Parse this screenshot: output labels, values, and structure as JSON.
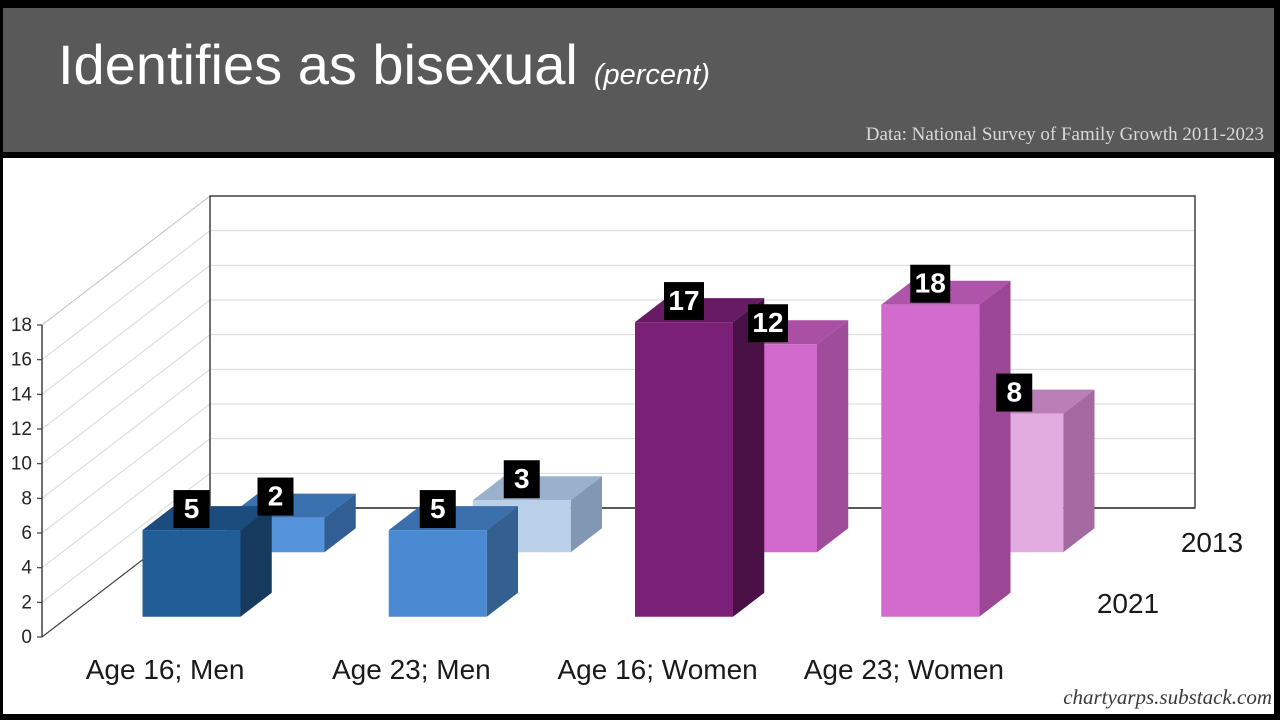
{
  "header": {
    "title": "Identifies as bisexual",
    "subtitle": "(percent)",
    "source": "Data: National Survey of Family Growth 2011-2023"
  },
  "footer": {
    "credit": "chartyarps.substack.com"
  },
  "colors": {
    "header_bg": "#595959",
    "frame": "#000000",
    "plot_bg": "#ffffff",
    "gridline": "#d9d9d9",
    "axis": "#404040",
    "tick_text": "#262626",
    "category_text": "#1a1a1a",
    "value_label_bg": "#000000",
    "value_label_text": "#ffffff"
  },
  "chart_data": {
    "type": "bar",
    "projection": "3d",
    "title": "Identifies as bisexual (percent)",
    "categories": [
      "Age 16; Men",
      "Age 23; Men",
      "Age 16; Women",
      "Age 23; Women"
    ],
    "series": [
      {
        "name": "2013",
        "depth": "back",
        "depth_start": 0.657,
        "values": [
          2,
          3,
          12,
          8
        ],
        "face_colors": [
          {
            "front": "#5593da",
            "top": "#3a72af",
            "side": "#315f93"
          },
          {
            "front": "#bacfe8",
            "top": "#9bb0cc",
            "side": "#8197b4"
          },
          {
            "front": "#d269cc",
            "top": "#a94fa4",
            "side": "#9f4c9a"
          },
          {
            "front": "#e3ace0",
            "top": "#ba7fb7",
            "side": "#a569a2"
          }
        ]
      },
      {
        "name": "2021",
        "depth": "front",
        "depth_start": 0.157,
        "values": [
          5,
          5,
          17,
          18
        ],
        "face_colors": [
          {
            "front": "#215d96",
            "top": "#1b4c7d",
            "side": "#163a5e"
          },
          {
            "front": "#4a8ad3",
            "top": "#3b70ac",
            "side": "#33608f"
          },
          {
            "front": "#7a2177",
            "top": "#671b64",
            "side": "#4a1147"
          },
          {
            "front": "#d16bcd",
            "top": "#ae55aa",
            "side": "#9b4796"
          }
        ]
      }
    ],
    "value_axis": {
      "min": 0,
      "max": 18,
      "step": 2,
      "ticks": [
        0,
        2,
        4,
        6,
        8,
        10,
        12,
        14,
        16,
        18
      ]
    },
    "legend": {
      "position": "right",
      "entries": [
        "2013",
        "2021"
      ]
    }
  }
}
